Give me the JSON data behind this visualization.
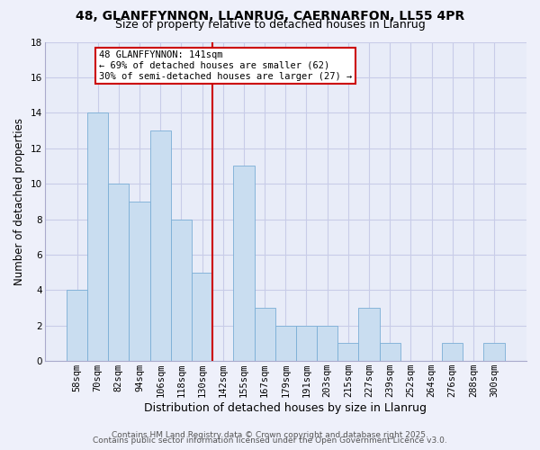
{
  "title": "48, GLANFFYNNON, LLANRUG, CAERNARFON, LL55 4PR",
  "subtitle": "Size of property relative to detached houses in Llanrug",
  "xlabel": "Distribution of detached houses by size in Llanrug",
  "ylabel": "Number of detached properties",
  "bar_labels": [
    "58sqm",
    "70sqm",
    "82sqm",
    "94sqm",
    "106sqm",
    "118sqm",
    "130sqm",
    "142sqm",
    "155sqm",
    "167sqm",
    "179sqm",
    "191sqm",
    "203sqm",
    "215sqm",
    "227sqm",
    "239sqm",
    "252sqm",
    "264sqm",
    "276sqm",
    "288sqm",
    "300sqm"
  ],
  "bar_values": [
    4,
    14,
    10,
    9,
    13,
    8,
    5,
    0,
    11,
    3,
    2,
    2,
    2,
    1,
    3,
    1,
    0,
    0,
    1,
    0,
    1
  ],
  "bar_color": "#c9ddf0",
  "bar_edge_color": "#7aaed6",
  "vline_color": "#cc0000",
  "annotation_title": "48 GLANFFYNNON: 141sqm",
  "annotation_line1": "← 69% of detached houses are smaller (62)",
  "annotation_line2": "30% of semi-detached houses are larger (27) →",
  "annotation_box_color": "#ffffff",
  "annotation_box_edge": "#cc0000",
  "ylim": [
    0,
    18
  ],
  "yticks": [
    0,
    2,
    4,
    6,
    8,
    10,
    12,
    14,
    16,
    18
  ],
  "grid_color": "#c8cce8",
  "footer1": "Contains HM Land Registry data © Crown copyright and database right 2025.",
  "footer2": "Contains public sector information licensed under the Open Government Licence v3.0.",
  "bg_color": "#eef0fa",
  "plot_bg_color": "#e8ecf8",
  "title_fontsize": 10,
  "subtitle_fontsize": 9,
  "xlabel_fontsize": 9,
  "ylabel_fontsize": 8.5,
  "tick_fontsize": 7.5,
  "footer_fontsize": 6.5,
  "annotation_fontsize": 7.5
}
